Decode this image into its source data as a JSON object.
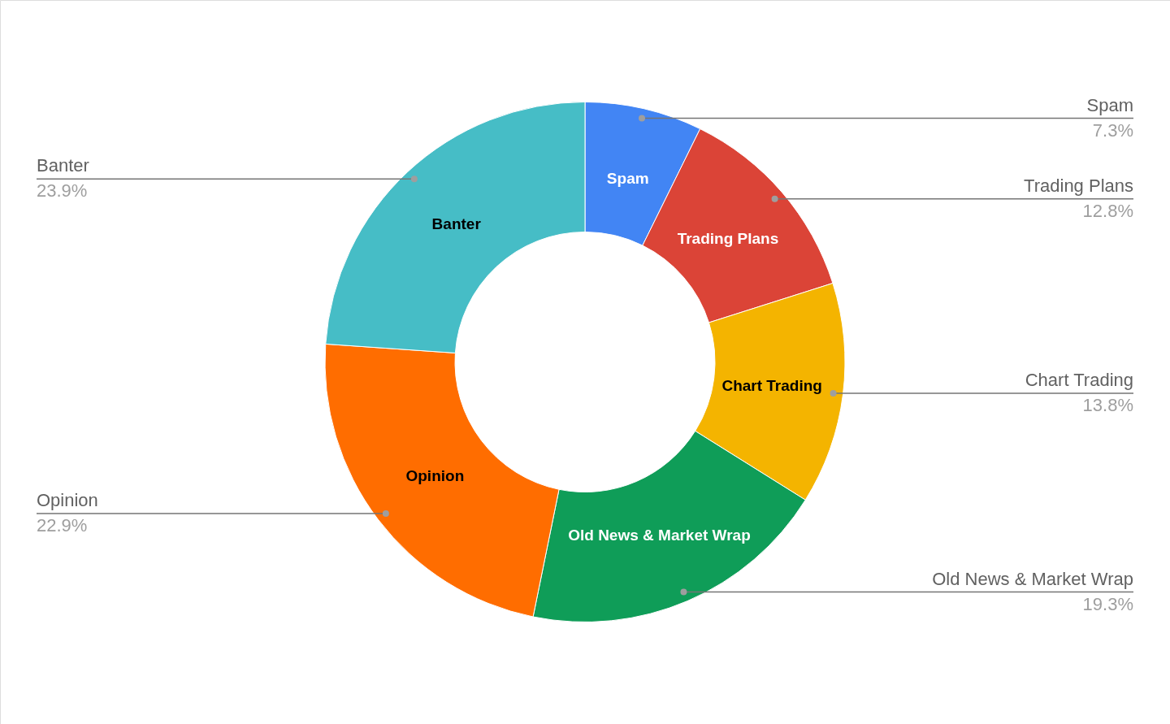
{
  "chart_data": {
    "type": "donut",
    "categories": [
      "Spam",
      "Trading Plans",
      "Chart Trading",
      "Old News & Market Wrap",
      "Opinion",
      "Banter"
    ],
    "values": [
      7.3,
      12.8,
      13.8,
      19.3,
      22.9,
      23.9
    ],
    "colors": [
      "#4285f4",
      "#db4437",
      "#f4b400",
      "#0f9d58",
      "#ff6d00",
      "#46bdc6"
    ],
    "value_labels": [
      "7.3%",
      "12.8%",
      "13.8%",
      "19.3%",
      "22.9%",
      "23.9%"
    ]
  }
}
